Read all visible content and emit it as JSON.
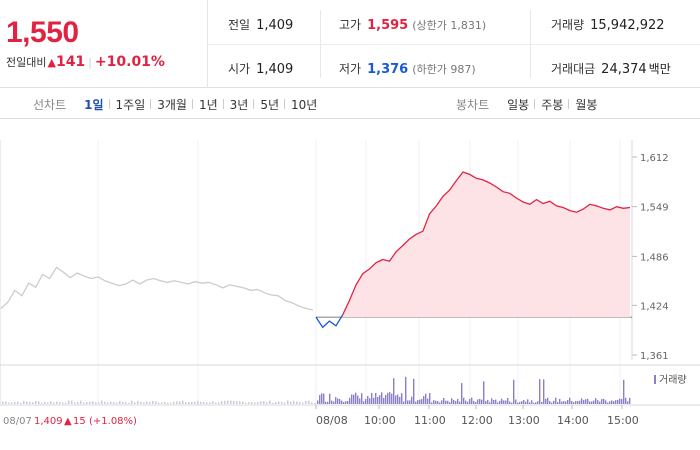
{
  "quote": {
    "price": "1,550",
    "change_label": "전일대비",
    "change_arrow": "▲",
    "change_value": "141",
    "change_pct": "+10.01%"
  },
  "stats": {
    "prev_close": {
      "label": "전일",
      "value": "1,409"
    },
    "open": {
      "label": "시가",
      "value": "1,409"
    },
    "high": {
      "label": "고가",
      "value": "1,595",
      "sub": "(상한가 1,831)"
    },
    "low": {
      "label": "저가",
      "value": "1,376",
      "sub": "(하한가 987)"
    },
    "volume": {
      "label": "거래량",
      "value": "15,942,922"
    },
    "amount": {
      "label": "거래대금",
      "value": "24,374",
      "unit": "백만"
    }
  },
  "period_tabs": {
    "label": "선차트",
    "items": [
      "1일",
      "1주일",
      "3개월",
      "1년",
      "3년",
      "5년",
      "10년"
    ],
    "active": "1일"
  },
  "candle_tabs": {
    "label": "봉차트",
    "items": [
      "일봉",
      "주봉",
      "월봉"
    ]
  },
  "colors": {
    "up": "#e12343",
    "down": "#1a5ad6",
    "prev_day_line": "#cccccc",
    "area_fill": "#fde3e6",
    "volume_bar": "#8e7ec6",
    "accent": "#1f4fb3"
  },
  "chart_data": {
    "type": "line",
    "y_ticks": [
      "1,612",
      "1,549",
      "1,486",
      "1,424",
      "1,361"
    ],
    "y_tick_values": [
      1612,
      1549,
      1486,
      1424,
      1361
    ],
    "ylim": [
      1361,
      1612
    ],
    "reference_price": 1409,
    "x_labels": [
      "08/07",
      "08/08",
      "10:00",
      "11:00",
      "12:00",
      "13:00",
      "14:00",
      "15:00"
    ],
    "prev_day_caption": {
      "date": "08/07",
      "close": "1,409",
      "arrow": "▲",
      "change": "15",
      "pct": "(+1.08%)"
    },
    "volume_legend": "거래량",
    "series": [
      {
        "values": [
          1420,
          1428,
          1443,
          1436,
          1452,
          1447,
          1463,
          1458,
          1472,
          1466,
          1459,
          1465,
          1461,
          1458,
          1460,
          1455,
          1452,
          1449,
          1451,
          1456,
          1451,
          1456,
          1458,
          1455,
          1453,
          1455,
          1453,
          1451,
          1454,
          1452,
          1453,
          1450,
          1446,
          1450,
          1448,
          1446,
          1443,
          1444,
          1440,
          1437,
          1436,
          1430,
          1427,
          1423,
          1420,
          1418
        ]
      },
      {
        "values": [
          1409,
          1396,
          1404,
          1398,
          1412,
          1430,
          1450,
          1464,
          1470,
          1478,
          1482,
          1480,
          1492,
          1500,
          1508,
          1514,
          1518,
          1540,
          1550,
          1562,
          1570,
          1582,
          1593,
          1590,
          1585,
          1583,
          1579,
          1574,
          1568,
          1566,
          1560,
          1555,
          1552,
          1558,
          1553,
          1556,
          1550,
          1548,
          1544,
          1542,
          1546,
          1552,
          1550,
          1547,
          1545,
          1549,
          1547,
          1548
        ]
      }
    ]
  }
}
